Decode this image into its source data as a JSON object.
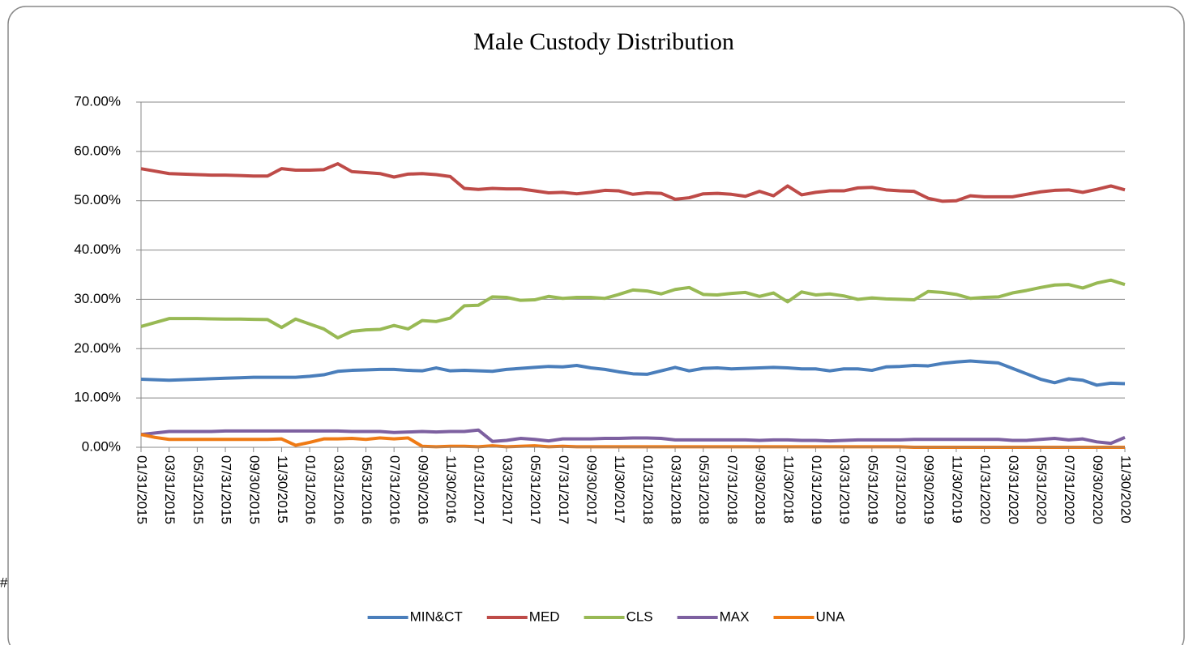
{
  "chart_data": {
    "type": "line",
    "title": "Male  Custody Distribution",
    "annotation": "#",
    "categories": [
      "01/31/2015",
      null,
      "03/31/2015",
      null,
      "05/31/2015",
      null,
      "07/31/2015",
      null,
      "09/30/2015",
      null,
      "11/30/2015",
      null,
      "01/31/2016",
      null,
      "03/31/2016",
      null,
      "05/31/2016",
      null,
      "07/31/2016",
      null,
      "09/30/2016",
      null,
      "11/30/2016",
      null,
      "01/31/2017",
      null,
      "03/31/2017",
      null,
      "05/31/2017",
      null,
      "07/31/2017",
      null,
      "09/30/2017",
      null,
      "11/30/2017",
      null,
      "01/31/2018",
      null,
      "03/31/2018",
      null,
      "05/31/2018",
      null,
      "07/31/2018",
      null,
      "09/30/2018",
      null,
      "11/30/2018",
      null,
      "01/31/2019",
      null,
      "03/31/2019",
      null,
      "05/31/2019",
      null,
      "07/31/2019",
      null,
      "09/30/2019",
      null,
      "11/30/2019",
      null,
      "01/31/2020",
      null,
      "03/31/2020",
      null,
      "05/31/2020",
      null,
      "07/31/2020",
      null,
      "09/30/2020",
      null,
      "11/30/2020"
    ],
    "series": [
      {
        "name": "MIN&CT",
        "color": "#4a7ebb",
        "values": [
          13.8,
          13.7,
          13.6,
          13.7,
          13.8,
          13.9,
          14.0,
          14.1,
          14.2,
          14.2,
          14.2,
          14.2,
          14.4,
          14.7,
          15.4,
          15.6,
          15.7,
          15.8,
          15.8,
          15.6,
          15.5,
          16.1,
          15.5,
          15.6,
          15.5,
          15.4,
          15.8,
          16.0,
          16.2,
          16.4,
          16.3,
          16.6,
          16.1,
          15.8,
          15.3,
          14.9,
          14.8,
          15.5,
          16.2,
          15.5,
          16.0,
          16.1,
          15.9,
          16.0,
          16.1,
          16.2,
          16.1,
          15.9,
          15.9,
          15.5,
          15.9,
          15.9,
          15.6,
          16.3,
          16.4,
          16.6,
          16.5,
          17.0,
          17.3,
          17.5,
          17.3,
          17.1,
          16.0,
          14.9,
          13.8,
          13.1,
          13.9,
          13.6,
          12.6,
          13.0,
          12.9
        ]
      },
      {
        "name": "MED",
        "color": "#be4b48",
        "values": [
          56.5,
          56.0,
          55.5,
          55.4,
          55.3,
          55.2,
          55.2,
          55.1,
          55.0,
          55.0,
          56.5,
          56.2,
          56.2,
          56.3,
          57.5,
          55.9,
          55.7,
          55.5,
          54.8,
          55.4,
          55.5,
          55.3,
          54.9,
          52.5,
          52.3,
          52.5,
          52.4,
          52.4,
          52.0,
          51.6,
          51.7,
          51.4,
          51.7,
          52.1,
          52.0,
          51.3,
          51.6,
          51.5,
          50.3,
          50.6,
          51.4,
          51.5,
          51.3,
          50.9,
          51.9,
          51.0,
          53.0,
          51.2,
          51.7,
          52.0,
          52.0,
          52.6,
          52.7,
          52.2,
          52.0,
          51.9,
          50.5,
          49.9,
          50.0,
          51.0,
          50.8,
          50.8,
          50.8,
          51.3,
          51.8,
          52.1,
          52.2,
          51.7,
          52.3,
          53.0,
          52.2
        ]
      },
      {
        "name": "CLS",
        "color": "#98b954",
        "values": [
          24.5,
          25.3,
          26.1,
          26.1,
          26.1,
          26.05,
          26.0,
          26.0,
          25.95,
          25.9,
          24.3,
          26.0,
          25.0,
          24.0,
          22.2,
          23.5,
          23.8,
          23.9,
          24.7,
          24.0,
          25.7,
          25.5,
          26.2,
          28.7,
          28.8,
          30.5,
          30.4,
          29.8,
          29.9,
          30.6,
          30.2,
          30.4,
          30.4,
          30.2,
          31.0,
          31.9,
          31.7,
          31.1,
          32.0,
          32.4,
          31.0,
          30.9,
          31.2,
          31.4,
          30.6,
          31.3,
          29.5,
          31.5,
          30.9,
          31.1,
          30.7,
          30.0,
          30.3,
          30.1,
          30.0,
          29.9,
          31.6,
          31.4,
          31.0,
          30.2,
          30.4,
          30.5,
          31.3,
          31.8,
          32.4,
          32.9,
          33.0,
          32.3,
          33.3,
          33.9,
          33.0
        ]
      },
      {
        "name": "MAX",
        "color": "#7d60a0",
        "values": [
          2.6,
          2.9,
          3.2,
          3.2,
          3.2,
          3.2,
          3.3,
          3.3,
          3.3,
          3.3,
          3.3,
          3.3,
          3.3,
          3.3,
          3.3,
          3.2,
          3.2,
          3.2,
          3.0,
          3.1,
          3.2,
          3.1,
          3.2,
          3.2,
          3.5,
          1.2,
          1.4,
          1.8,
          1.6,
          1.3,
          1.7,
          1.7,
          1.7,
          1.8,
          1.8,
          1.9,
          1.9,
          1.8,
          1.5,
          1.5,
          1.5,
          1.5,
          1.5,
          1.5,
          1.4,
          1.5,
          1.5,
          1.4,
          1.4,
          1.3,
          1.4,
          1.5,
          1.5,
          1.5,
          1.5,
          1.6,
          1.6,
          1.6,
          1.6,
          1.6,
          1.6,
          1.6,
          1.4,
          1.4,
          1.6,
          1.8,
          1.5,
          1.7,
          1.1,
          0.8,
          2.0
        ]
      },
      {
        "name": "UNA",
        "color": "#ef7a14",
        "values": [
          2.6,
          2.0,
          1.6,
          1.6,
          1.6,
          1.6,
          1.6,
          1.6,
          1.6,
          1.6,
          1.7,
          0.4,
          1.0,
          1.7,
          1.7,
          1.8,
          1.6,
          1.9,
          1.7,
          1.9,
          0.2,
          0.1,
          0.2,
          0.2,
          0.1,
          0.3,
          0.1,
          0.2,
          0.3,
          0.1,
          0.2,
          0.1,
          0.1,
          0.1,
          0.1,
          0.1,
          0.1,
          0.1,
          0.1,
          0.1,
          0.1,
          0.1,
          0.1,
          0.1,
          0.1,
          0.1,
          0.1,
          0.1,
          0.1,
          0.1,
          0.1,
          0.1,
          0.1,
          0.1,
          0.1,
          0.0,
          0.0,
          0.0,
          0.0,
          0.0,
          0.0,
          0.0,
          0.0,
          0.0,
          0.0,
          0.0,
          0.0,
          0.0,
          0.0,
          0.0,
          0.0
        ]
      }
    ],
    "ylim": [
      0,
      70
    ],
    "yticks": [
      {
        "value": 0,
        "label": "0.00%"
      },
      {
        "value": 10,
        "label": "10.00%"
      },
      {
        "value": 20,
        "label": "20.00%"
      },
      {
        "value": 30,
        "label": "30.00%"
      },
      {
        "value": 40,
        "label": "40.00%"
      },
      {
        "value": 50,
        "label": "50.00%"
      },
      {
        "value": 60,
        "label": "60.00%"
      },
      {
        "value": 70,
        "label": "70.00%"
      }
    ],
    "grid": true,
    "legend": "bottom"
  }
}
